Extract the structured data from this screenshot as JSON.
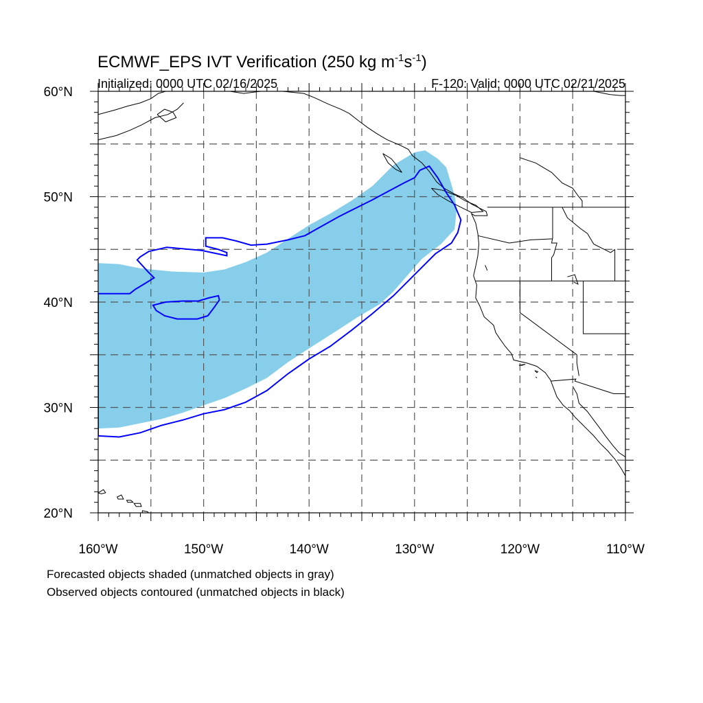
{
  "title": {
    "main": "ECMWF_EPS IVT Verification (250 kg m",
    "exp1": "-1",
    "mid": "s",
    "exp2": "-1",
    "close": ")"
  },
  "subtitle": {
    "left": "Initialized: 0000 UTC 02/16/2025",
    "right": "F-120: Valid: 0000 UTC 02/21/2025"
  },
  "caption": {
    "line1": "Forecasted objects shaded (unmatched objects in gray)",
    "line2": "Observed objects contoured (unmatched objects in black)"
  },
  "map": {
    "lon_range": [
      -160,
      -110
    ],
    "lat_range": [
      20,
      60
    ],
    "lon_labels": [
      {
        "lon": -160,
        "text": "160°W"
      },
      {
        "lon": -150,
        "text": "150°W"
      },
      {
        "lon": -140,
        "text": "140°W"
      },
      {
        "lon": -130,
        "text": "130°W"
      },
      {
        "lon": -120,
        "text": "120°W"
      },
      {
        "lon": -110,
        "text": "110°W"
      }
    ],
    "lat_labels": [
      {
        "lat": 60,
        "text": "60°N"
      },
      {
        "lat": 50,
        "text": "50°N"
      },
      {
        "lat": 40,
        "text": "40°N"
      },
      {
        "lat": 30,
        "text": "30°N"
      },
      {
        "lat": 20,
        "text": "20°N"
      }
    ],
    "grid_lons": [
      -155,
      -150,
      -145,
      -140,
      -135,
      -130,
      -125,
      -120,
      -115
    ],
    "grid_lats": [
      25,
      30,
      35,
      40,
      45,
      50,
      55
    ],
    "colors": {
      "forecast_fill": "#87ceeb",
      "observed_contour": "#0000ff",
      "coastline": "#000000",
      "grid": "#555555"
    },
    "forecast_object": [
      [
        -160,
        43.7
      ],
      [
        -158,
        43.6
      ],
      [
        -156,
        43.2
      ],
      [
        -153,
        42.9
      ],
      [
        -150,
        42.8
      ],
      [
        -148,
        43.1
      ],
      [
        -146,
        43.8
      ],
      [
        -144,
        44.7
      ],
      [
        -142,
        46.0
      ],
      [
        -140,
        47.3
      ],
      [
        -138,
        48.4
      ],
      [
        -136,
        49.6
      ],
      [
        -134,
        51.0
      ],
      [
        -132,
        53.0
      ],
      [
        -130,
        54.2
      ],
      [
        -129,
        54.4
      ],
      [
        -127.8,
        53.6
      ],
      [
        -127,
        52.8
      ],
      [
        -126.6,
        51.5
      ],
      [
        -126.2,
        50.1
      ],
      [
        -126,
        48.8
      ],
      [
        -126.2,
        46.9
      ],
      [
        -127.5,
        45.5
      ],
      [
        -129.3,
        44.1
      ],
      [
        -130.7,
        42.5
      ],
      [
        -132,
        41.0
      ],
      [
        -133.3,
        39.8
      ],
      [
        -135.5,
        38.5
      ],
      [
        -137.5,
        37.2
      ],
      [
        -140,
        35.6
      ],
      [
        -142,
        34.3
      ],
      [
        -144,
        32.8
      ],
      [
        -146,
        31.8
      ],
      [
        -148,
        30.9
      ],
      [
        -150,
        30.2
      ],
      [
        -152,
        29.5
      ],
      [
        -154,
        28.9
      ],
      [
        -156,
        28.5
      ],
      [
        -158,
        28.1
      ],
      [
        -160,
        28.0
      ]
    ],
    "observed_outer": [
      [
        -160,
        27.3
      ],
      [
        -158,
        27.2
      ],
      [
        -156,
        27.6
      ],
      [
        -154,
        28.3
      ],
      [
        -152,
        28.8
      ],
      [
        -150,
        29.4
      ],
      [
        -148,
        29.8
      ],
      [
        -146,
        30.5
      ],
      [
        -144,
        31.6
      ],
      [
        -142,
        33.2
      ],
      [
        -140,
        34.6
      ],
      [
        -138,
        35.8
      ],
      [
        -136,
        37.3
      ],
      [
        -134,
        38.9
      ],
      [
        -132,
        40.6
      ],
      [
        -130.5,
        42.1
      ],
      [
        -129,
        43.6
      ],
      [
        -128,
        44.6
      ],
      [
        -126.5,
        45.6
      ],
      [
        -125.9,
        46.6
      ],
      [
        -125.6,
        47.8
      ],
      [
        -126.2,
        49.2
      ],
      [
        -127,
        50.4
      ],
      [
        -127.8,
        51.8
      ],
      [
        -128.6,
        52.9
      ],
      [
        -129.5,
        52.5
      ],
      [
        -130,
        51.8
      ],
      [
        -131,
        51.3
      ],
      [
        -132.5,
        50.5
      ],
      [
        -134,
        49.7
      ],
      [
        -135.6,
        48.9
      ],
      [
        -137.2,
        48.1
      ],
      [
        -138.8,
        47.2
      ],
      [
        -140.4,
        46.3
      ],
      [
        -142,
        45.9
      ],
      [
        -144,
        45.5
      ],
      [
        -145.5,
        45.4
      ],
      [
        -146.9,
        45.8
      ],
      [
        -148.2,
        46.1
      ],
      [
        -149.8,
        46.1
      ],
      [
        -149.8,
        45.3
      ],
      [
        -148.6,
        45.0
      ],
      [
        -147.8,
        44.7
      ],
      [
        -147.8,
        44.4
      ],
      [
        -150.2,
        44.9
      ],
      [
        -153.5,
        45.2
      ],
      [
        -155.2,
        44.8
      ],
      [
        -156,
        44.3
      ],
      [
        -156.3,
        44.0
      ],
      [
        -155.2,
        42.8
      ],
      [
        -154.7,
        42.3
      ],
      [
        -155.5,
        41.8
      ],
      [
        -156.5,
        41.2
      ],
      [
        -157,
        40.8
      ],
      [
        -160,
        40.8
      ]
    ],
    "observed_inner": [
      [
        -154.8,
        39.7
      ],
      [
        -153.6,
        40.0
      ],
      [
        -152,
        40.1
      ],
      [
        -150.5,
        40.1
      ],
      [
        -149.5,
        40.4
      ],
      [
        -148.6,
        40.6
      ],
      [
        -148.5,
        40.2
      ],
      [
        -149,
        39.5
      ],
      [
        -149.6,
        38.7
      ],
      [
        -150.6,
        38.4
      ],
      [
        -152.5,
        38.4
      ],
      [
        -153.7,
        38.7
      ],
      [
        -154.5,
        39.2
      ]
    ],
    "coastlines": [
      [
        [
          -160,
          57.8
        ],
        [
          -158.5,
          58.2
        ],
        [
          -157.2,
          58.6
        ],
        [
          -156,
          58.9
        ],
        [
          -155,
          59.3
        ],
        [
          -154.3,
          59.8
        ],
        [
          -153.6,
          60
        ]
      ],
      [
        [
          -160,
          55.4
        ],
        [
          -158.3,
          55.8
        ],
        [
          -157,
          56.3
        ],
        [
          -155.9,
          56.8
        ],
        [
          -154.6,
          57.5
        ],
        [
          -153.4,
          57.8
        ],
        [
          -152.5,
          58.3
        ],
        [
          -151.9,
          58.9
        ]
      ],
      [
        [
          -154.4,
          57.8
        ],
        [
          -153.6,
          57.1
        ],
        [
          -152.6,
          57.5
        ],
        [
          -152.9,
          58.0
        ],
        [
          -153.7,
          58.3
        ],
        [
          -154.4,
          57.8
        ]
      ],
      [
        [
          -147.5,
          60
        ],
        [
          -146.2,
          59.8
        ],
        [
          -144.6,
          60
        ],
        [
          -142.5,
          60
        ],
        [
          -140.5,
          59.8
        ],
        [
          -139.5,
          59.4
        ],
        [
          -138.2,
          58.8
        ],
        [
          -137.0,
          58.3
        ],
        [
          -136.2,
          57.9
        ],
        [
          -135.3,
          57.2
        ],
        [
          -134.5,
          56.6
        ],
        [
          -133.6,
          56.0
        ],
        [
          -132.6,
          55.4
        ],
        [
          -131.4,
          54.9
        ],
        [
          -130.6,
          54.5
        ],
        [
          -130.2,
          53.9
        ],
        [
          -129.3,
          53.2
        ],
        [
          -128.6,
          52.4
        ],
        [
          -127.9,
          51.4
        ],
        [
          -127.2,
          50.8
        ],
        [
          -126.3,
          50.3
        ],
        [
          -125.4,
          49.9
        ],
        [
          -124.6,
          49.3
        ],
        [
          -123.8,
          48.9
        ],
        [
          -123.2,
          48.6
        ],
        [
          -123.1,
          48.2
        ],
        [
          -124.3,
          48.2
        ],
        [
          -124.6,
          48.4
        ],
        [
          -124.2,
          47.5
        ],
        [
          -124.0,
          46.5
        ],
        [
          -123.9,
          45.5
        ],
        [
          -124.0,
          44.4
        ],
        [
          -124.2,
          43.4
        ],
        [
          -124.4,
          42.5
        ],
        [
          -124.1,
          41.6
        ],
        [
          -124.2,
          40.4
        ],
        [
          -123.8,
          39.6
        ],
        [
          -123.4,
          38.6
        ],
        [
          -122.5,
          37.8
        ],
        [
          -122.3,
          37.1
        ],
        [
          -121.9,
          36.5
        ],
        [
          -121.4,
          35.8
        ],
        [
          -120.8,
          35.1
        ],
        [
          -120.6,
          34.5
        ],
        [
          -119.3,
          34.2
        ],
        [
          -118.4,
          33.9
        ],
        [
          -117.6,
          33.3
        ],
        [
          -117.1,
          32.6
        ],
        [
          -116.8,
          31.8
        ],
        [
          -116.5,
          31.0
        ],
        [
          -115.9,
          30.2
        ],
        [
          -115.3,
          29.7
        ],
        [
          -114.8,
          29.1
        ],
        [
          -114.2,
          28.5
        ],
        [
          -113.6,
          27.9
        ],
        [
          -113.0,
          27.3
        ],
        [
          -112.4,
          26.6
        ],
        [
          -111.7,
          25.9
        ],
        [
          -111.0,
          25.1
        ],
        [
          -110.4,
          24.2
        ],
        [
          -110.0,
          23.5
        ]
      ],
      [
        [
          -133.0,
          54.1
        ],
        [
          -132.2,
          53.6
        ],
        [
          -131.7,
          53.0
        ],
        [
          -131.2,
          52.3
        ],
        [
          -131.8,
          52.6
        ],
        [
          -132.5,
          53.2
        ],
        [
          -133.0,
          54.1
        ]
      ],
      [
        [
          -128.4,
          50.8
        ],
        [
          -127.3,
          50.6
        ],
        [
          -126.0,
          50.1
        ],
        [
          -125.2,
          49.6
        ],
        [
          -124.2,
          49.2
        ],
        [
          -123.5,
          48.6
        ],
        [
          -124.6,
          48.5
        ],
        [
          -125.6,
          49.0
        ],
        [
          -126.8,
          49.6
        ],
        [
          -127.8,
          50.2
        ],
        [
          -128.4,
          50.8
        ]
      ],
      [
        [
          -115.0,
          32.0
        ],
        [
          -114.6,
          31.3
        ],
        [
          -114.4,
          30.4
        ],
        [
          -113.6,
          29.6
        ],
        [
          -113.0,
          28.8
        ],
        [
          -112.4,
          28.0
        ],
        [
          -111.9,
          27.3
        ],
        [
          -111.2,
          26.4
        ],
        [
          -110.6,
          25.7
        ],
        [
          -110.0,
          25.3
        ]
      ],
      [
        [
          -113,
          60
        ],
        [
          -111.5,
          59.7
        ],
        [
          -110.5,
          59.6
        ],
        [
          -110,
          59.6
        ]
      ],
      [
        [
          -120,
          53.7
        ],
        [
          -118.5,
          53.2
        ],
        [
          -117,
          52.3
        ],
        [
          -116,
          51.3
        ],
        [
          -115,
          50.8
        ],
        [
          -114.5,
          50.1
        ],
        [
          -114.1,
          49.6
        ],
        [
          -114.1,
          49.0
        ]
      ],
      [
        [
          -123.3,
          43.5
        ],
        [
          -123.1,
          43.0
        ]
      ],
      [
        [
          -115.5,
          42.4
        ],
        [
          -114.8,
          42.6
        ],
        [
          -114.5,
          41.7
        ],
        [
          -114.9,
          41.9
        ]
      ]
    ],
    "islands": [
      [
        [
          -160.0,
          21.9
        ],
        [
          -159.5,
          22.2
        ],
        [
          -159.3,
          21.9
        ],
        [
          -159.7,
          21.8
        ],
        [
          -160,
          21.9
        ]
      ],
      [
        [
          -158.2,
          21.5
        ],
        [
          -157.8,
          21.7
        ],
        [
          -157.6,
          21.3
        ],
        [
          -158.1,
          21.3
        ],
        [
          -158.2,
          21.5
        ]
      ],
      [
        [
          -157.3,
          21.2
        ],
        [
          -156.9,
          21.2
        ],
        [
          -156.7,
          21.0
        ],
        [
          -157.2,
          21.0
        ],
        [
          -157.3,
          21.2
        ]
      ],
      [
        [
          -156.6,
          20.9
        ],
        [
          -156.0,
          20.9
        ],
        [
          -155.9,
          20.6
        ],
        [
          -156.4,
          20.6
        ],
        [
          -156.6,
          20.9
        ]
      ],
      [
        [
          -155.8,
          20.2
        ],
        [
          -155.3,
          20.1
        ],
        [
          -154.9,
          19.6
        ],
        [
          -155.4,
          19.3
        ],
        [
          -155.9,
          19.4
        ],
        [
          -155.8,
          20.2
        ]
      ],
      [
        [
          -118.6,
          33.5
        ],
        [
          -118.3,
          33.4
        ],
        [
          -118.4,
          33.3
        ],
        [
          -118.6,
          33.5
        ]
      ],
      [
        [
          -119.5,
          34.1
        ],
        [
          -119.8,
          34.0
        ],
        [
          -120.1,
          34.0
        ],
        [
          -119.5,
          34.1
        ]
      ],
      [
        [
          -118.5,
          32.9
        ],
        [
          -118.4,
          32.8
        ]
      ]
    ],
    "borders": [
      [
        [
          -123.1,
          49.0
        ],
        [
          -110,
          49.0
        ]
      ],
      [
        [
          -116.9,
          49.0
        ],
        [
          -116.9,
          46.1
        ],
        [
          -117.0,
          45.6
        ],
        [
          -116.5,
          45.6
        ],
        [
          -116.8,
          44.5
        ],
        [
          -117.0,
          44.2
        ],
        [
          -117.0,
          42.0
        ]
      ],
      [
        [
          -124.2,
          42.0
        ],
        [
          -110,
          42.0
        ]
      ],
      [
        [
          -120.0,
          42.0
        ],
        [
          -120.0,
          39.0
        ],
        [
          -114.6,
          35.0
        ],
        [
          -114.6,
          34.2
        ],
        [
          -114.4,
          33.0
        ]
      ],
      [
        [
          -124.0,
          46.3
        ],
        [
          -121.0,
          45.6
        ],
        [
          -119.0,
          45.9
        ],
        [
          -116.9,
          46.0
        ]
      ],
      [
        [
          -114.0,
          42.0
        ],
        [
          -114.0,
          37.0
        ],
        [
          -110,
          37.0
        ]
      ],
      [
        [
          -111.0,
          45.0
        ],
        [
          -111.0,
          44.0
        ],
        [
          -111.0,
          42.0
        ]
      ],
      [
        [
          -117.1,
          32.5
        ],
        [
          -114.7,
          32.7
        ],
        [
          -114.8,
          32.5
        ],
        [
          -111.1,
          31.3
        ],
        [
          -110,
          31.3
        ]
      ],
      [
        [
          -116.0,
          49.0
        ],
        [
          -115.5,
          48.0
        ],
        [
          -114.3,
          47.0
        ],
        [
          -113.6,
          46.5
        ],
        [
          -113.0,
          45.5
        ],
        [
          -111.4,
          44.7
        ],
        [
          -111.0,
          45.0
        ]
      ]
    ]
  }
}
